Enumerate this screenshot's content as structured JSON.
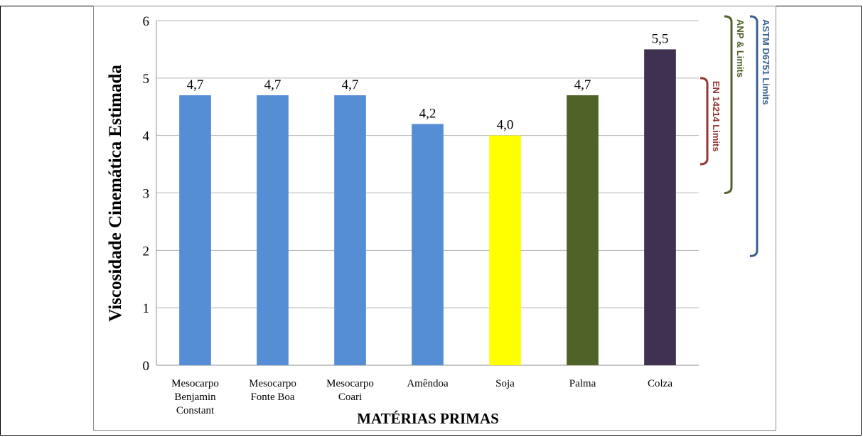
{
  "chart_data": {
    "type": "bar",
    "ylabel": "Viscosidade Cinemática Estimada",
    "xlabel": "MATÉRIAS PRIMAS",
    "ylim": [
      0,
      6
    ],
    "yticks": [
      "0",
      "1",
      "2",
      "3",
      "4",
      "5",
      "6"
    ],
    "grid": true,
    "categories": [
      [
        "Mesocarpo",
        "Benjamin",
        "Constant"
      ],
      [
        "Mesocarpo",
        "Fonte Boa"
      ],
      [
        "Mesocarpo",
        "Coari"
      ],
      [
        "Amêndoa"
      ],
      [
        "Soja"
      ],
      [
        "Palma"
      ],
      [
        "Colza"
      ]
    ],
    "values": [
      4.7,
      4.7,
      4.7,
      4.2,
      4.0,
      4.7,
      5.5
    ],
    "data_labels": [
      "4,7",
      "4,7",
      "4,7",
      "4,2",
      "4,0",
      "4,7",
      "5,5"
    ],
    "bar_colors": [
      "#558ed5",
      "#558ed5",
      "#558ed5",
      "#558ed5",
      "#ffff00",
      "#4f6228",
      "#403151"
    ],
    "limit_brackets": [
      {
        "label": "EN 14214 Limits",
        "range": [
          3.5,
          5.0
        ],
        "color": "#953735"
      },
      {
        "label": "ANP & Limits",
        "range": [
          3.0,
          6.0
        ],
        "color": "#4f6228"
      },
      {
        "label": "ASTM D6751 Limits",
        "range": [
          1.9,
          6.0
        ],
        "color": "#376092"
      }
    ]
  }
}
